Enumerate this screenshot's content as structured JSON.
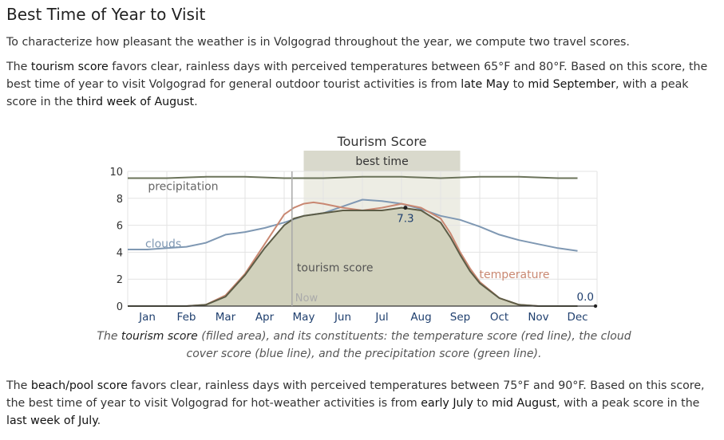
{
  "heading": "Best Time of Year to Visit",
  "intro": "To characterize how pleasant the weather is in Volgograd throughout the year, we compute two travel scores.",
  "tourism_para": {
    "t1": "The ",
    "score_name": "tourism score",
    "t2": " favors clear, rainless days with perceived temperatures between 65°F and 80°F. Based on this score, the best time of year to visit Volgograd for general outdoor tourist activities is from ",
    "start": "late May",
    "t3": " to ",
    "end": "mid September",
    "t4": ", with a peak score in the ",
    "peak": "third week of August",
    "t5": "."
  },
  "caption": {
    "t1": "The ",
    "score_name": "tourism score",
    "t2": " (filled area), and its constituents: the temperature score (red line), the cloud cover score (blue line), and the precipitation score (green line)."
  },
  "beach_para": {
    "t1": "The ",
    "score_name": "beach/pool score",
    "t2": " favors clear, rainless days with perceived temperatures between 75°F and 90°F. Based on this score, the best time of year to visit Volgograd for hot-weather activities is from ",
    "start": "early July",
    "t3": " to ",
    "end": "mid August",
    "t4": ", with a peak score in the ",
    "peak": "last week of July",
    "t5": "."
  },
  "chart_data": {
    "type": "area",
    "title": "Tourism Score",
    "x_labels": [
      "Jan",
      "Feb",
      "Mar",
      "Apr",
      "May",
      "Jun",
      "Jul",
      "Aug",
      "Sep",
      "Oct",
      "Nov",
      "Dec"
    ],
    "ylim": [
      0,
      10
    ],
    "y_ticks": [
      "0",
      "2",
      "4",
      "6",
      "8",
      "10"
    ],
    "grid": true,
    "best_time": {
      "label": "best time",
      "from_month": 4.5,
      "to_month": 8.5
    },
    "now": {
      "label": "Now",
      "month": 4.2
    },
    "annotations": {
      "peak_value": "7.3",
      "peak_month": 7.1,
      "end_value": "0.0"
    },
    "series": [
      {
        "name": "precipitation",
        "role": "line",
        "color": "#6b735a",
        "months": [
          0,
          1,
          2,
          3,
          4,
          5,
          6,
          7,
          8,
          9,
          10,
          11,
          11.5
        ],
        "values": [
          9.5,
          9.5,
          9.6,
          9.6,
          9.5,
          9.5,
          9.6,
          9.6,
          9.5,
          9.6,
          9.6,
          9.5,
          9.5
        ]
      },
      {
        "name": "clouds",
        "role": "line",
        "color": "#7f98b3",
        "months": [
          0,
          0.5,
          1,
          1.5,
          2,
          2.5,
          3,
          3.5,
          4,
          4.5,
          5,
          5.5,
          6,
          6.5,
          7,
          7.5,
          8,
          8.5,
          9,
          9.5,
          10,
          10.5,
          11,
          11.5
        ],
        "values": [
          4.2,
          4.2,
          4.3,
          4.4,
          4.7,
          5.3,
          5.5,
          5.8,
          6.2,
          6.7,
          6.9,
          7.4,
          7.9,
          7.8,
          7.6,
          7.2,
          6.7,
          6.4,
          5.9,
          5.3,
          4.9,
          4.6,
          4.3,
          4.1
        ]
      },
      {
        "name": "temperature",
        "role": "line",
        "color": "#c98872",
        "months": [
          0,
          0.5,
          1,
          1.5,
          2,
          2.5,
          3,
          3.5,
          4,
          4.25,
          4.5,
          4.75,
          5,
          5.5,
          6,
          6.5,
          7,
          7.5,
          8,
          8.25,
          8.5,
          8.75,
          9,
          9.5,
          10,
          10.5,
          11,
          11.5
        ],
        "values": [
          0,
          0,
          0,
          0,
          0.1,
          0.8,
          2.4,
          4.6,
          6.8,
          7.3,
          7.6,
          7.7,
          7.6,
          7.3,
          7.1,
          7.3,
          7.6,
          7.3,
          6.5,
          5.4,
          4.0,
          2.8,
          1.8,
          0.6,
          0.1,
          0,
          0,
          0
        ]
      },
      {
        "name": "tourism score",
        "role": "area",
        "color": "#5c5c46",
        "fill": "#d1d1bc",
        "months": [
          0,
          0.5,
          1,
          1.5,
          2,
          2.5,
          3,
          3.5,
          4,
          4.25,
          4.5,
          5,
          5.5,
          6,
          6.5,
          7,
          7.5,
          8,
          8.25,
          8.5,
          8.75,
          9,
          9.5,
          10,
          10.5,
          11,
          11.5
        ],
        "values": [
          0,
          0,
          0,
          0,
          0.1,
          0.7,
          2.3,
          4.3,
          6.0,
          6.5,
          6.7,
          6.9,
          7.1,
          7.1,
          7.1,
          7.3,
          7.1,
          6.2,
          5.1,
          3.8,
          2.6,
          1.7,
          0.6,
          0.1,
          0,
          0,
          0
        ]
      }
    ],
    "series_labels": {
      "precipitation": {
        "text": "precipitation",
        "month": 0.15,
        "value": 8.9
      },
      "clouds": {
        "text": "clouds",
        "month": 0.0,
        "value": 4.6
      },
      "temperature": {
        "text": "temperature",
        "month": 8.95,
        "value": 2.3
      },
      "tourism": {
        "text": "tourism score",
        "month": 5.3,
        "value": 2.8
      }
    }
  }
}
